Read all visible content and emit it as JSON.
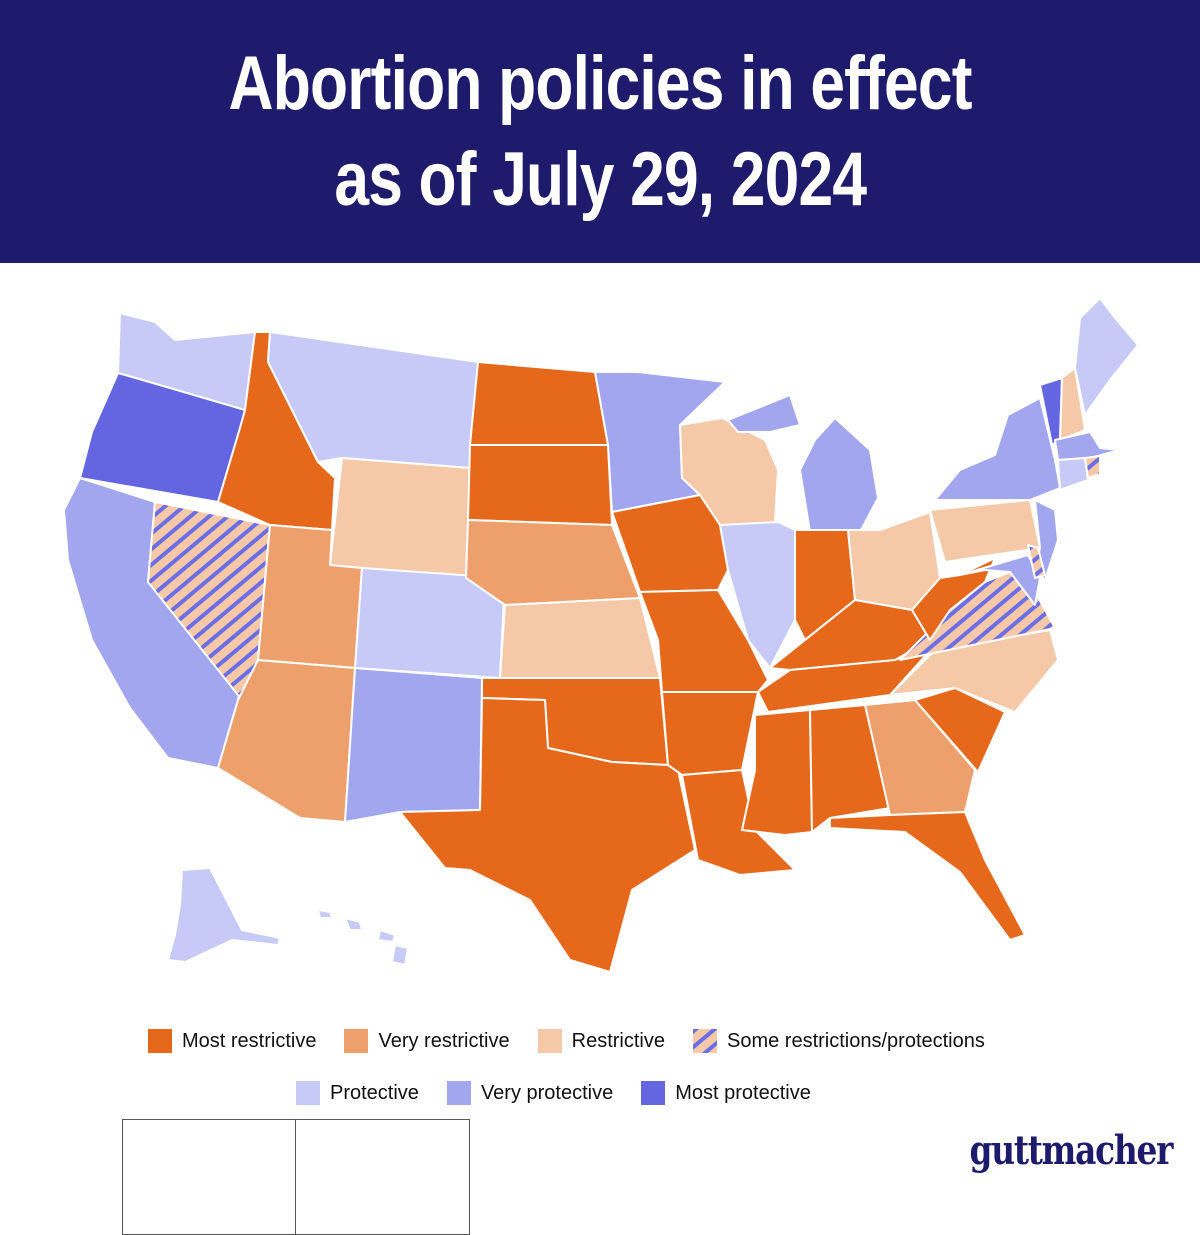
{
  "header": {
    "title_line_1": "Abortion policies in effect",
    "title_line_2": "as of July 29, 2024"
  },
  "colors": {
    "header_bg": "#1e1b6c",
    "most_restrictive": "#e5681b",
    "very_restrictive": "#eea06c",
    "restrictive": "#f5c8a7",
    "some_restrictions_protections": "hatched #f5c8a7 / #6b6ee6",
    "protective": "#c7c9f6",
    "very_protective": "#a1a6ef",
    "most_protective": "#6366e0"
  },
  "legend": {
    "row1": [
      {
        "label": "Most restrictive",
        "category": "most_restrictive"
      },
      {
        "label": "Very restrictive",
        "category": "very_restrictive"
      },
      {
        "label": "Restrictive",
        "category": "restrictive"
      },
      {
        "label": "Some restrictions/protections",
        "category": "some_restrictions_protections"
      }
    ],
    "row2": [
      {
        "label": "Protective",
        "category": "protective"
      },
      {
        "label": "Very protective",
        "category": "very_protective"
      },
      {
        "label": "Most protective",
        "category": "most_protective"
      }
    ]
  },
  "state_categories": {
    "most_restrictive": [
      "ID",
      "ND",
      "SD",
      "IA",
      "MO",
      "AR",
      "OK",
      "TX",
      "LA",
      "MS",
      "AL",
      "TN",
      "KY",
      "IN",
      "WV",
      "SC",
      "FL"
    ],
    "very_restrictive": [
      "UT",
      "AZ",
      "NE",
      "GA"
    ],
    "restrictive": [
      "WY",
      "KS",
      "WI",
      "OH",
      "PA",
      "NC",
      "NH"
    ],
    "some_restrictions_protections": [
      "NV",
      "VA",
      "DE",
      "RI"
    ],
    "protective": [
      "WA",
      "MT",
      "CO",
      "IL",
      "AK",
      "HI",
      "ME",
      "CT"
    ],
    "very_protective": [
      "CA",
      "MN",
      "MI",
      "NM",
      "NY",
      "NJ",
      "MD",
      "MA"
    ],
    "most_protective": [
      "OR",
      "VT"
    ]
  },
  "brand": "guttmacher"
}
